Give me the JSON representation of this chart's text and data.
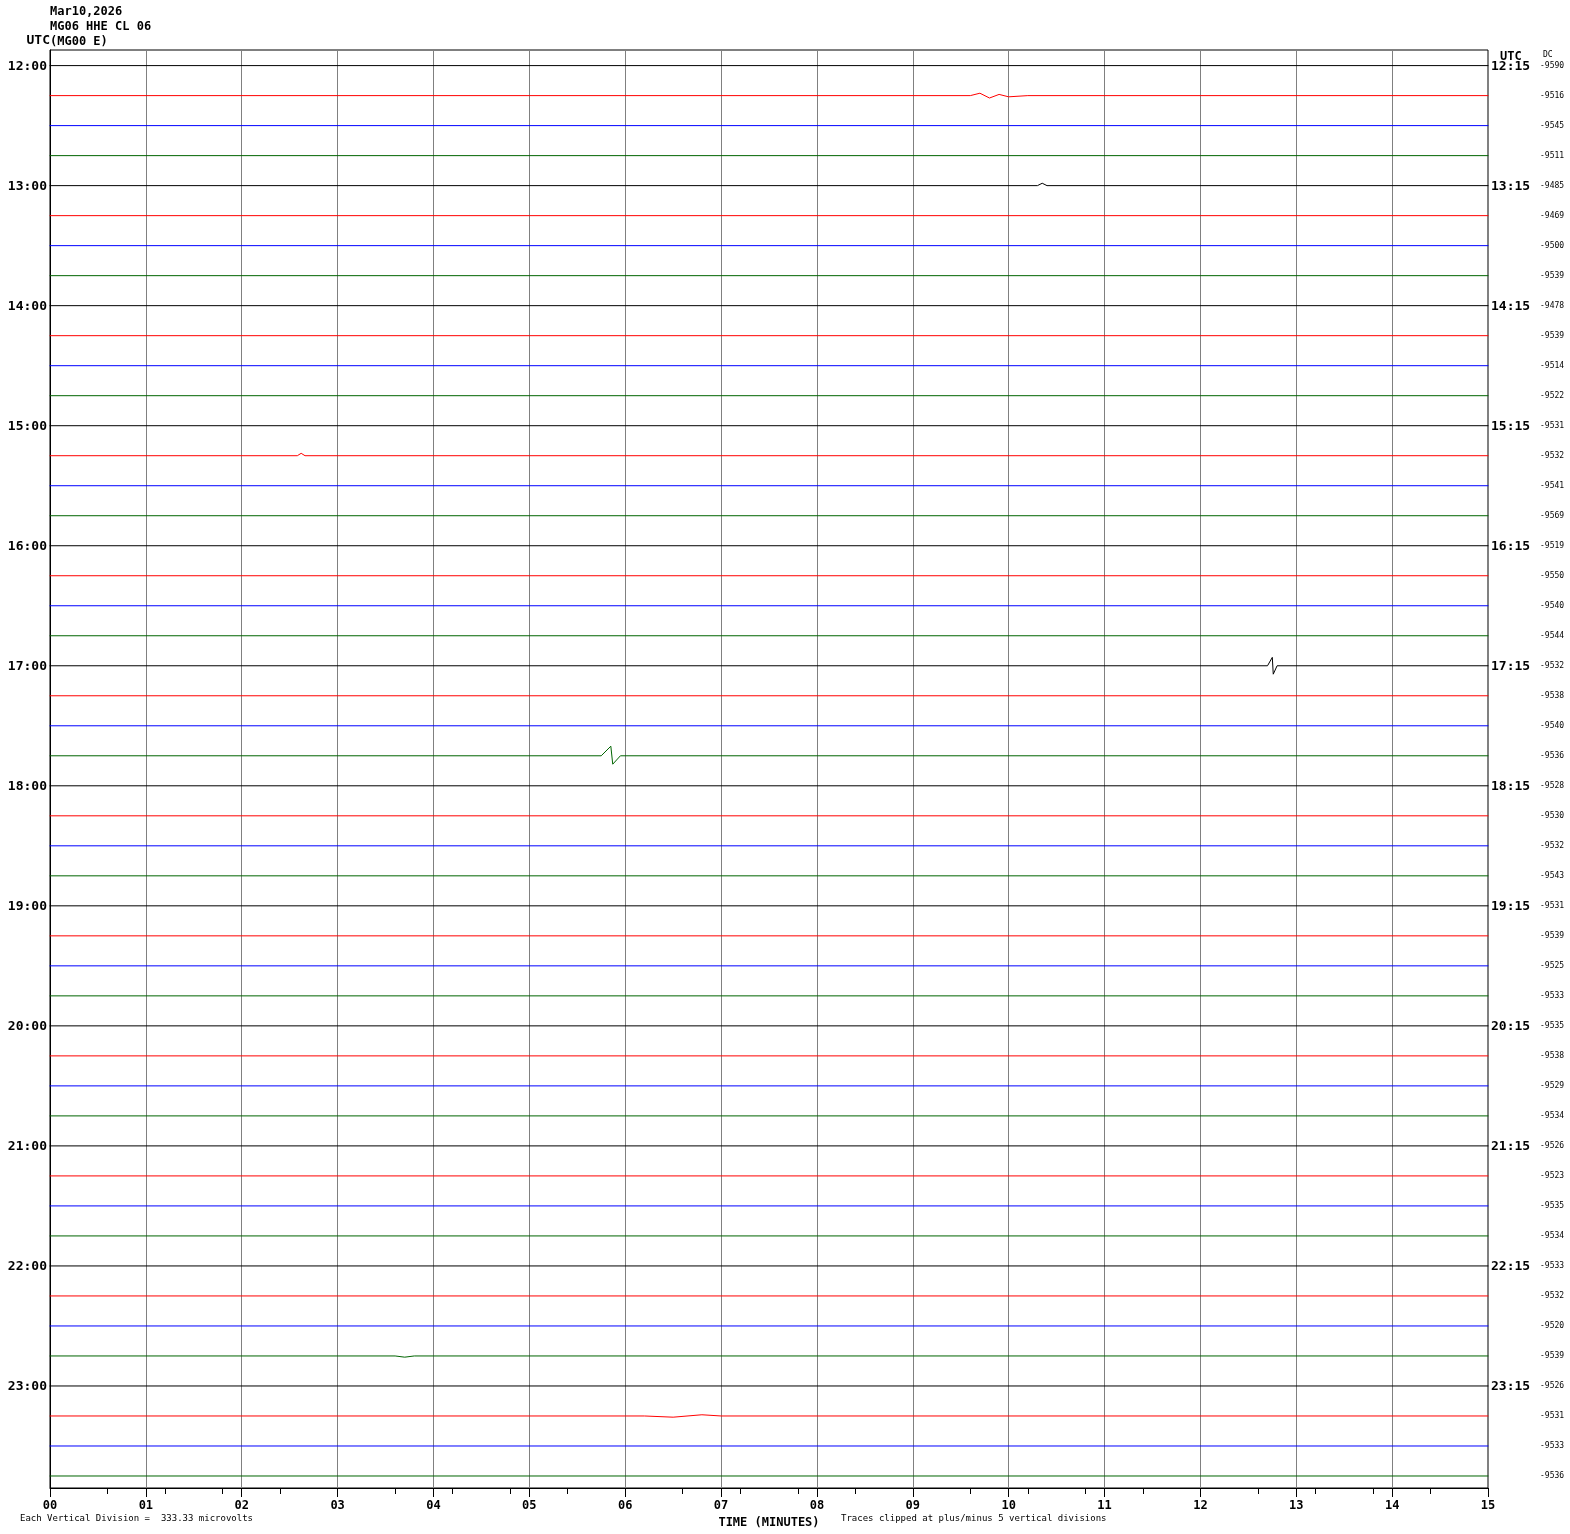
{
  "chart_data": {
    "type": "line",
    "title": "Mar10,2026",
    "subtitle": "MG06 HHE CL 06\n(MG00 E)",
    "xlabel": "TIME (MINUTES)",
    "ylabel": "UTC",
    "annotations": [
      "Each Vertical Division =  333.33 microvolts",
      "Traces clipped at plus/minus 5 vertical divisions",
      "UTC",
      "DC",
      "12:15",
      "13:15",
      "14:15",
      "15:15",
      "16:15",
      "17:15",
      "18:15",
      "19:15",
      "20:15",
      "21:15",
      "22:15",
      "23:15",
      "-9590",
      "-9516",
      "-9545",
      "-9511",
      "-9485",
      "-9469",
      "-9500",
      "-9539",
      "-9478",
      "-9539",
      "-9514",
      "-9522",
      "-9531",
      "-9532",
      "-9541",
      "-9569",
      "-9519",
      "-9550",
      "-9540",
      "-9544",
      "-9532",
      "-9538",
      "-9540",
      "-9536",
      "-9528",
      "-9530",
      "-9532",
      "-9543",
      "-9531",
      "-9539",
      "-9525",
      "-9533",
      "-9535",
      "-9538",
      "-9529",
      "-9534",
      "-9526",
      "-9523",
      "-9535",
      "-9534",
      "-9533",
      "-9532",
      "-9520",
      "-9539",
      "-9526",
      "-9531",
      "-9533",
      "-9536"
    ],
    "xlim": [
      0,
      15
    ],
    "xticks": [
      {
        "value": 0,
        "label": "00"
      },
      {
        "value": 1,
        "label": "01"
      },
      {
        "value": 2,
        "label": "02"
      },
      {
        "value": 3,
        "label": "03"
      },
      {
        "value": 4,
        "label": "04"
      },
      {
        "value": 5,
        "label": "05"
      },
      {
        "value": 6,
        "label": "06"
      },
      {
        "value": 7,
        "label": "07"
      },
      {
        "value": 8,
        "label": "08"
      },
      {
        "value": 9,
        "label": "09"
      },
      {
        "value": 10,
        "label": "10"
      },
      {
        "value": 11,
        "label": "11"
      },
      {
        "value": 12,
        "label": "12"
      },
      {
        "value": 13,
        "label": "13"
      },
      {
        "value": 14,
        "label": "14"
      },
      {
        "value": 15,
        "label": "15"
      }
    ],
    "ylim": [
      23.85,
      11.87
    ],
    "yticks": [
      {
        "value": 12,
        "label": "12:00"
      },
      {
        "value": 13,
        "label": "13:00"
      },
      {
        "value": 14,
        "label": "14:00"
      },
      {
        "value": 15,
        "label": "15:00"
      },
      {
        "value": 16,
        "label": "16:00"
      },
      {
        "value": 17,
        "label": "17:00"
      },
      {
        "value": 18,
        "label": "18:00"
      },
      {
        "value": 19,
        "label": "19:00"
      },
      {
        "value": 20,
        "label": "20:00"
      },
      {
        "value": 21,
        "label": "21:00"
      },
      {
        "value": 22,
        "label": "22:00"
      },
      {
        "value": 23,
        "label": "23:00"
      }
    ],
    "grid": "x",
    "marker": "none",
    "line_style": "solid",
    "series": [
      {
        "color": "#000000",
        "x": [
          0,
          15
        ],
        "values": [
          12,
          12
        ]
      },
      {
        "color": "#ff0000",
        "x": [
          0,
          9.6,
          9.7,
          9.8,
          9.9,
          10.0,
          10.2,
          15
        ],
        "values": [
          12.25,
          12.25,
          12.23,
          12.27,
          12.24,
          12.26,
          12.25,
          12.25
        ]
      },
      {
        "color": "#0000ff",
        "x": [
          0,
          15
        ],
        "values": [
          12.5,
          12.5
        ]
      },
      {
        "color": "#006400",
        "x": [
          0,
          15
        ],
        "values": [
          12.75,
          12.75
        ]
      },
      {
        "color": "#000000",
        "x": [
          0,
          10.3,
          10.35,
          10.4,
          15
        ],
        "values": [
          13,
          13,
          12.98,
          13,
          13
        ]
      },
      {
        "color": "#ff0000",
        "x": [
          0,
          15
        ],
        "values": [
          13.25,
          13.25
        ]
      },
      {
        "color": "#0000ff",
        "x": [
          0,
          15
        ],
        "values": [
          13.5,
          13.5
        ]
      },
      {
        "color": "#006400",
        "x": [
          0,
          15
        ],
        "values": [
          13.75,
          13.75
        ]
      },
      {
        "color": "#000000",
        "x": [
          0,
          15
        ],
        "values": [
          14,
          14
        ]
      },
      {
        "color": "#ff0000",
        "x": [
          0,
          15
        ],
        "values": [
          14.25,
          14.25
        ]
      },
      {
        "color": "#0000ff",
        "x": [
          0,
          15
        ],
        "values": [
          14.5,
          14.5
        ]
      },
      {
        "color": "#006400",
        "x": [
          0,
          15
        ],
        "values": [
          14.75,
          14.75
        ]
      },
      {
        "color": "#000000",
        "x": [
          0,
          15
        ],
        "values": [
          15,
          15
        ]
      },
      {
        "color": "#ff0000",
        "x": [
          0,
          2.58,
          2.62,
          2.66,
          15
        ],
        "values": [
          15.25,
          15.25,
          15.23,
          15.25,
          15.25
        ]
      },
      {
        "color": "#0000ff",
        "x": [
          0,
          15
        ],
        "values": [
          15.5,
          15.5
        ]
      },
      {
        "color": "#006400",
        "x": [
          0,
          15
        ],
        "values": [
          15.75,
          15.75
        ]
      },
      {
        "color": "#000000",
        "x": [
          0,
          15
        ],
        "values": [
          16,
          16
        ]
      },
      {
        "color": "#ff0000",
        "x": [
          0,
          15
        ],
        "values": [
          16.25,
          16.25
        ]
      },
      {
        "color": "#0000ff",
        "x": [
          0,
          15
        ],
        "values": [
          16.5,
          16.5
        ]
      },
      {
        "color": "#006400",
        "x": [
          0,
          15
        ],
        "values": [
          16.75,
          16.75
        ]
      },
      {
        "color": "#000000",
        "x": [
          0,
          12.7,
          12.75,
          12.76,
          12.8,
          15
        ],
        "values": [
          17,
          17,
          16.93,
          17.07,
          17,
          17
        ]
      },
      {
        "color": "#ff0000",
        "x": [
          0,
          15
        ],
        "values": [
          17.25,
          17.25
        ]
      },
      {
        "color": "#0000ff",
        "x": [
          0,
          15
        ],
        "values": [
          17.5,
          17.5
        ]
      },
      {
        "color": "#006400",
        "x": [
          0,
          5.75,
          5.85,
          5.87,
          5.95,
          15
        ],
        "values": [
          17.75,
          17.75,
          17.67,
          17.82,
          17.75,
          17.75
        ]
      },
      {
        "color": "#000000",
        "x": [
          0,
          15
        ],
        "values": [
          18,
          18
        ]
      },
      {
        "color": "#ff0000",
        "x": [
          0,
          15
        ],
        "values": [
          18.25,
          18.25
        ]
      },
      {
        "color": "#0000ff",
        "x": [
          0,
          15
        ],
        "values": [
          18.5,
          18.5
        ]
      },
      {
        "color": "#006400",
        "x": [
          0,
          15
        ],
        "values": [
          18.75,
          18.75
        ]
      },
      {
        "color": "#000000",
        "x": [
          0,
          15
        ],
        "values": [
          19,
          19
        ]
      },
      {
        "color": "#ff0000",
        "x": [
          0,
          15
        ],
        "values": [
          19.25,
          19.25
        ]
      },
      {
        "color": "#0000ff",
        "x": [
          0,
          15
        ],
        "values": [
          19.5,
          19.5
        ]
      },
      {
        "color": "#006400",
        "x": [
          0,
          15
        ],
        "values": [
          19.75,
          19.75
        ]
      },
      {
        "color": "#000000",
        "x": [
          0,
          15
        ],
        "values": [
          20,
          20
        ]
      },
      {
        "color": "#ff0000",
        "x": [
          0,
          15
        ],
        "values": [
          20.25,
          20.25
        ]
      },
      {
        "color": "#0000ff",
        "x": [
          0,
          15
        ],
        "values": [
          20.5,
          20.5
        ]
      },
      {
        "color": "#006400",
        "x": [
          0,
          15
        ],
        "values": [
          20.75,
          20.75
        ]
      },
      {
        "color": "#000000",
        "x": [
          0,
          15
        ],
        "values": [
          21,
          21
        ]
      },
      {
        "color": "#ff0000",
        "x": [
          0,
          15
        ],
        "values": [
          21.25,
          21.25
        ]
      },
      {
        "color": "#0000ff",
        "x": [
          0,
          15
        ],
        "values": [
          21.5,
          21.5
        ]
      },
      {
        "color": "#006400",
        "x": [
          0,
          15
        ],
        "values": [
          21.75,
          21.75
        ]
      },
      {
        "color": "#000000",
        "x": [
          0,
          15
        ],
        "values": [
          22,
          22
        ]
      },
      {
        "color": "#ff0000",
        "x": [
          0,
          15
        ],
        "values": [
          22.25,
          22.25
        ]
      },
      {
        "color": "#0000ff",
        "x": [
          0,
          15
        ],
        "values": [
          22.5,
          22.5
        ]
      },
      {
        "color": "#006400",
        "x": [
          0,
          3.6,
          3.7,
          3.8,
          15
        ],
        "values": [
          22.75,
          22.75,
          22.76,
          22.75,
          22.75
        ]
      },
      {
        "color": "#000000",
        "x": [
          0,
          15
        ],
        "values": [
          23,
          23
        ]
      },
      {
        "color": "#ff0000",
        "x": [
          0,
          6.2,
          6.5,
          6.8,
          7.0,
          15
        ],
        "values": [
          23.25,
          23.25,
          23.26,
          23.24,
          23.25,
          23.25
        ]
      },
      {
        "color": "#0000ff",
        "x": [
          0,
          15
        ],
        "values": [
          23.5,
          23.5
        ]
      },
      {
        "color": "#006400",
        "x": [
          0,
          15
        ],
        "values": [
          23.75,
          23.75
        ]
      }
    ]
  }
}
